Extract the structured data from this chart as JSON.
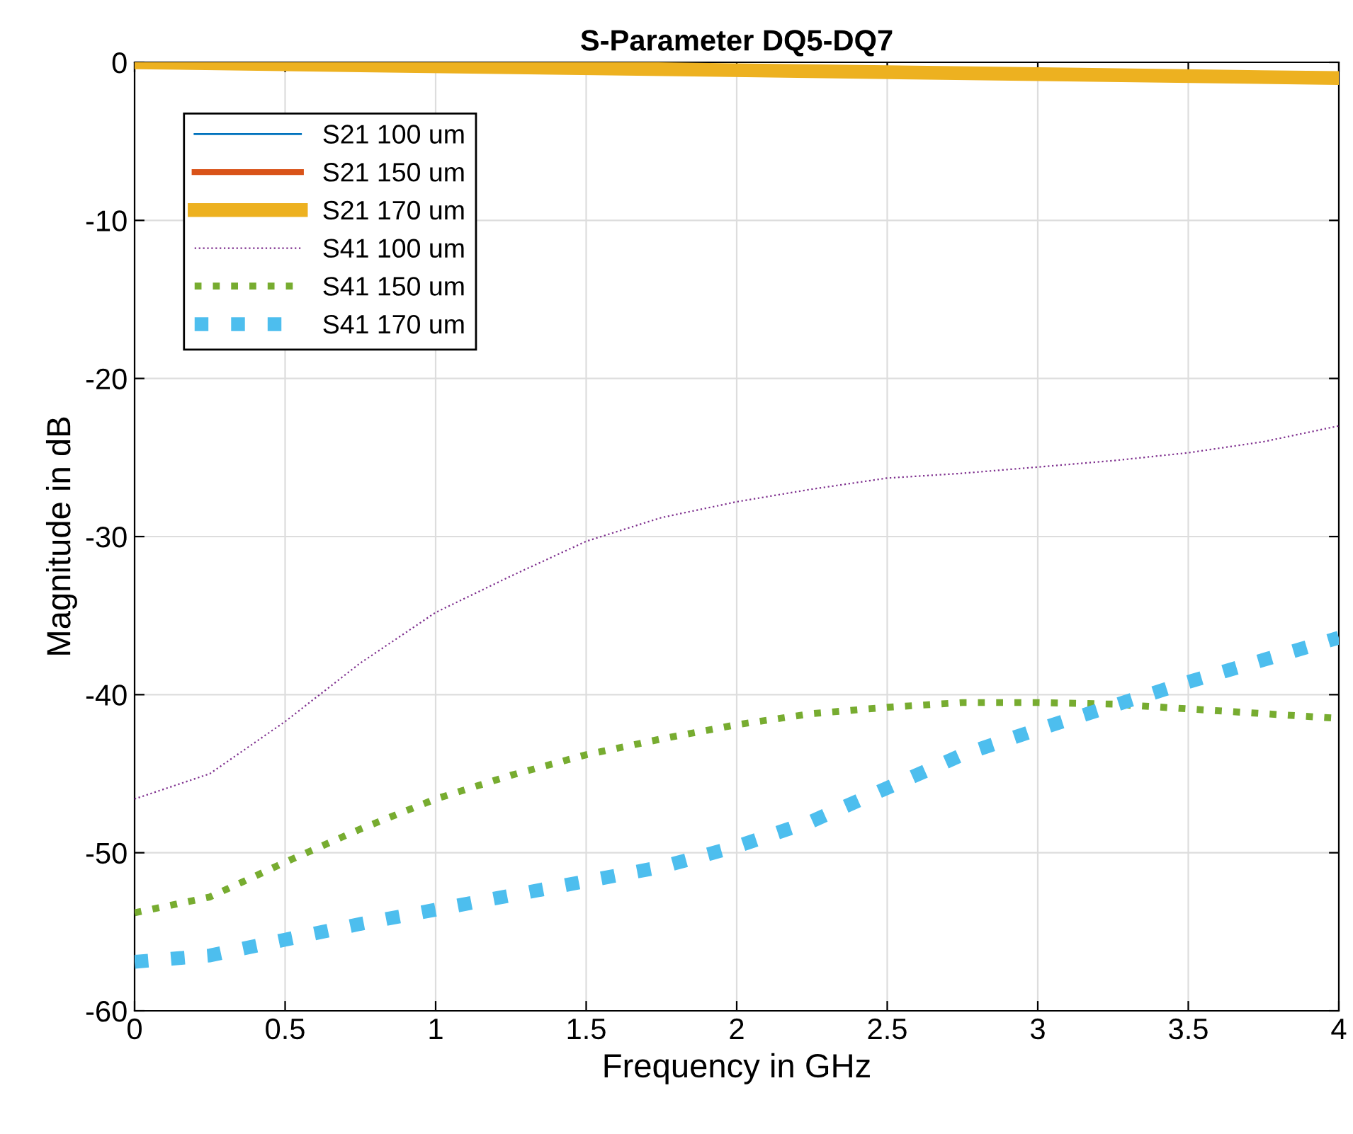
{
  "chart_data": {
    "type": "line",
    "title": "S-Parameter DQ5-DQ7",
    "xlabel": "Frequency in GHz",
    "ylabel": "Magnitude in dB",
    "x": [
      0,
      0.25,
      0.5,
      0.75,
      1,
      1.25,
      1.5,
      1.75,
      2,
      2.25,
      2.5,
      2.75,
      3,
      3.25,
      3.5,
      3.75,
      4
    ],
    "xlim": [
      0,
      4
    ],
    "ylim": [
      -60,
      0
    ],
    "xticks": [
      0,
      0.5,
      1,
      1.5,
      2,
      2.5,
      3,
      3.5,
      4
    ],
    "yticks": [
      -60,
      -50,
      -40,
      -30,
      -20,
      -10,
      0
    ],
    "grid": true,
    "legend": "top left",
    "series": [
      {
        "name": "S21 100 um",
        "color": "#0072bd",
        "line_style": "solid",
        "values": [
          null,
          null,
          null,
          null,
          null,
          null,
          null,
          null,
          null,
          null,
          null,
          null,
          null,
          null,
          null,
          null,
          null
        ]
      },
      {
        "name": "S21 150 um",
        "color": "#d95319",
        "line_style": "solid",
        "values": [
          null,
          null,
          null,
          null,
          null,
          null,
          null,
          null,
          null,
          null,
          null,
          null,
          null,
          null,
          null,
          null,
          null
        ]
      },
      {
        "name": "S21 170 um",
        "color": "#edb120",
        "line_style": "solid",
        "x": [
          0,
          4
        ],
        "values": [
          0,
          -1
        ]
      },
      {
        "name": "S41 100 um",
        "color": "#7e2f8e",
        "line_style": "dotted",
        "values": [
          -46.6,
          -45.0,
          -41.7,
          -38.0,
          -34.8,
          -32.5,
          -30.3,
          -28.8,
          -27.8,
          -27.0,
          -26.3,
          -26.0,
          -25.6,
          -25.2,
          -24.7,
          -24.0,
          -23.0
        ]
      },
      {
        "name": "S41 150 um",
        "color": "#77ac30",
        "line_style": "dotted",
        "values": [
          -53.8,
          -52.8,
          -50.6,
          -48.5,
          -46.6,
          -45.1,
          -43.8,
          -42.8,
          -41.9,
          -41.2,
          -40.8,
          -40.5,
          -40.5,
          -40.6,
          -40.9,
          -41.2,
          -41.5
        ]
      },
      {
        "name": "S41 170 um",
        "color": "#4dbeee",
        "line_style": "dotted",
        "values": [
          -56.9,
          -56.5,
          -55.5,
          -54.5,
          -53.6,
          -52.7,
          -51.8,
          -50.9,
          -49.6,
          -48.0,
          -45.9,
          -43.8,
          -42.2,
          -40.7,
          -39.2,
          -37.8,
          -36.4
        ]
      }
    ]
  }
}
